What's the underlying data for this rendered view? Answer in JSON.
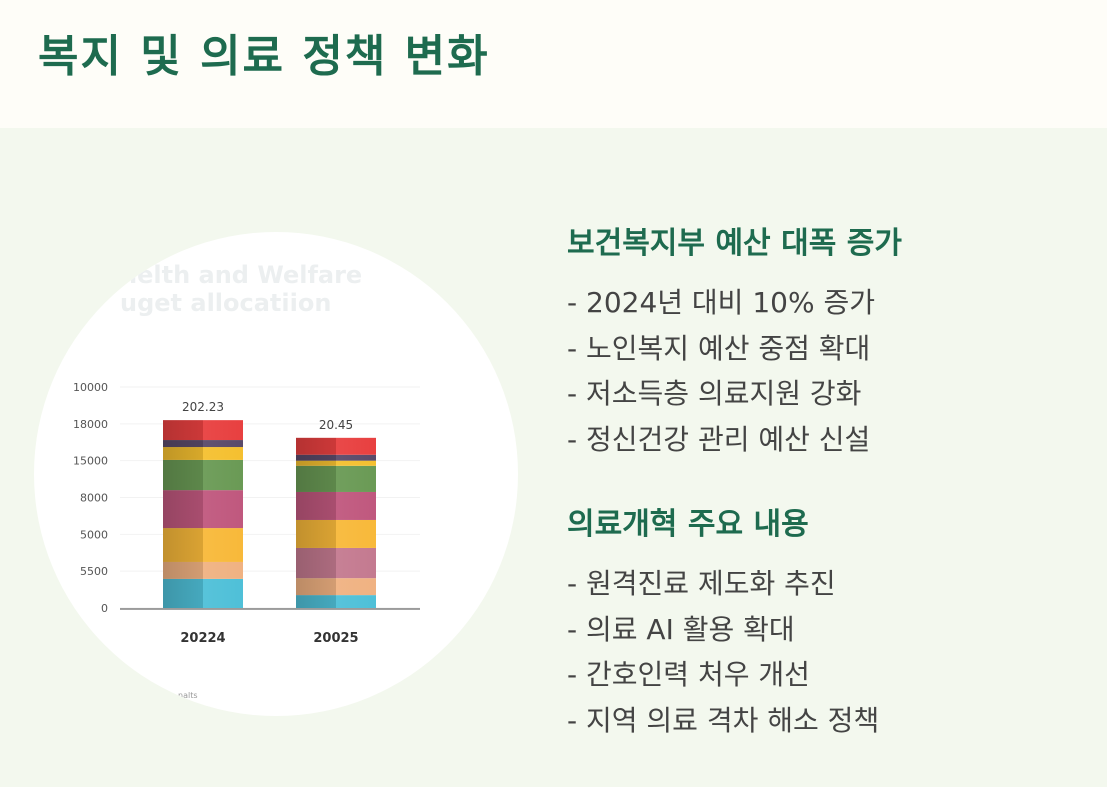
{
  "header": {
    "title": "복지 및 의료 정책 변화"
  },
  "sections": [
    {
      "heading": "보건복지부 예산 대폭 증가",
      "items": [
        "- 2024년 대비 10% 증가",
        "- 노인복지 예산 중점 확대",
        "- 저소득층 의료지원 강화",
        "- 정신건강 관리 예산 신설"
      ]
    },
    {
      "heading": "의료개혁 주요 내용",
      "items": [
        "- 원격진료 제도화 추진",
        "- 의료 AI 활용 확대",
        "- 간호인력 처우 개선",
        "- 지역 의료 격차 해소 정책"
      ]
    }
  ],
  "chart_data": {
    "type": "stacked-bar",
    "title_lines": [
      "nelth and Welfare",
      "uget allocatiion"
    ],
    "footnote": "nalts",
    "categories": [
      "20224",
      "20025"
    ],
    "annotations": [
      "202.23",
      "20.45"
    ],
    "ylim": [
      0,
      6
    ],
    "yticks": [
      {
        "value": 0,
        "label": "0"
      },
      {
        "value": 1,
        "label": "5500"
      },
      {
        "value": 2,
        "label": "5000"
      },
      {
        "value": 3,
        "label": "8000"
      },
      {
        "value": 4,
        "label": "15000"
      },
      {
        "value": 5,
        "label": "18000"
      },
      {
        "value": 6,
        "label": "10000"
      }
    ],
    "series": [
      {
        "color": "#4fc0d8",
        "values": [
          0.79,
          0.35
        ]
      },
      {
        "color": "#f0b282",
        "values": [
          0.46,
          0.46
        ]
      },
      {
        "color": "#c47a90",
        "values": [
          0,
          0.82
        ]
      },
      {
        "color": "#f8b93a",
        "values": [
          0.92,
          0.76
        ]
      },
      {
        "color": "#c0587e",
        "values": [
          1.03,
          0.76
        ]
      },
      {
        "color": "#6a9a55",
        "values": [
          0.82,
          0.71
        ]
      },
      {
        "color": "#f5c030",
        "values": [
          0.35,
          0.14
        ]
      },
      {
        "color": "#5a4a6a",
        "values": [
          0.19,
          0.16
        ]
      },
      {
        "color": "#e84040",
        "values": [
          0.54,
          0.46
        ]
      }
    ],
    "grid": true
  }
}
